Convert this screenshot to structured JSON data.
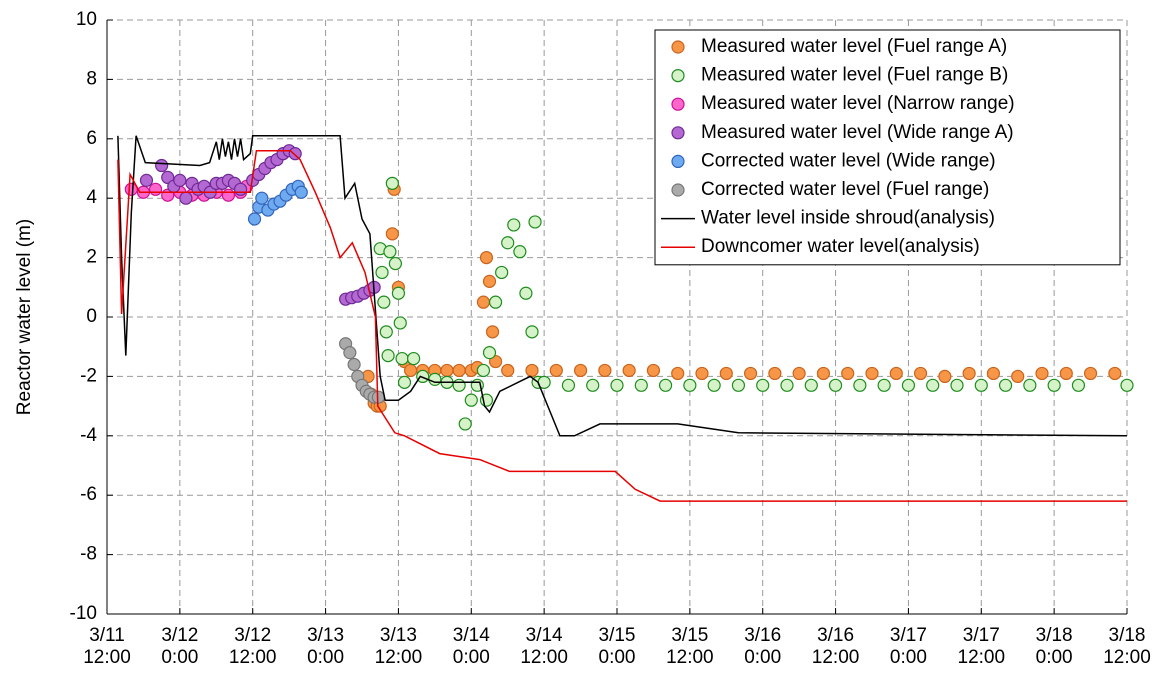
{
  "chart_data": {
    "type": "scatter",
    "ylabel": "Reactor water level (m)",
    "xlim": [
      12,
      180
    ],
    "ylim": [
      -10,
      10
    ],
    "yticks": [
      -10,
      -8,
      -6,
      -4,
      -2,
      0,
      2,
      4,
      6,
      8,
      10
    ],
    "xticks": [
      {
        "value": 12,
        "label": "3/11\n12:00"
      },
      {
        "value": 24,
        "label": "3/12\n0:00"
      },
      {
        "value": 36,
        "label": "3/12\n12:00"
      },
      {
        "value": 48,
        "label": "3/13\n0:00"
      },
      {
        "value": 60,
        "label": "3/13\n12:00"
      },
      {
        "value": 72,
        "label": "3/14\n0:00"
      },
      {
        "value": 84,
        "label": "3/14\n12:00"
      },
      {
        "value": 96,
        "label": "3/15\n0:00"
      },
      {
        "value": 108,
        "label": "3/15\n12:00"
      },
      {
        "value": 120,
        "label": "3/16\n0:00"
      },
      {
        "value": 132,
        "label": "3/16\n12:00"
      },
      {
        "value": 144,
        "label": "3/17\n0:00"
      },
      {
        "value": 156,
        "label": "3/17\n12:00"
      },
      {
        "value": 168,
        "label": "3/18\n0:00"
      },
      {
        "value": 180,
        "label": "3/18\n12:00"
      }
    ],
    "grid": true,
    "legend": "upper right",
    "series": [
      {
        "name": "Measured water level (Fuel range A)",
        "mode": "marker",
        "color": "#f79646",
        "edgecolor": "#c8641e",
        "x": [
          55,
          55.5,
          56,
          56.5,
          57,
          59,
          59.3,
          60,
          61,
          62,
          64,
          66,
          68,
          70,
          72,
          73,
          74,
          74.5,
          75,
          75.5,
          76,
          78,
          82,
          86,
          90,
          94,
          98,
          102,
          106,
          110,
          114,
          118,
          122,
          126,
          130,
          134,
          138,
          142,
          146,
          150,
          154,
          158,
          162,
          166,
          170,
          174,
          178
        ],
        "values": [
          -2.0,
          -2.6,
          -2.9,
          -3.0,
          -3.0,
          2.8,
          4.3,
          1.0,
          -1.5,
          -1.8,
          -1.8,
          -1.8,
          -1.8,
          -1.8,
          -1.8,
          -1.7,
          0.5,
          2.0,
          1.2,
          -0.5,
          -1.5,
          -1.8,
          -1.8,
          -1.8,
          -1.8,
          -1.8,
          -1.8,
          -1.8,
          -1.9,
          -1.9,
          -1.9,
          -1.9,
          -1.9,
          -1.9,
          -1.9,
          -1.9,
          -1.9,
          -1.9,
          -1.9,
          -2.0,
          -1.9,
          -1.9,
          -2.0,
          -1.9,
          -1.9,
          -1.9,
          -1.9
        ]
      },
      {
        "name": "Measured water level (Fuel range B)",
        "mode": "marker",
        "color": "#d6f2c8",
        "edgecolor": "#1e8c1e",
        "x": [
          57,
          57.3,
          57.6,
          58,
          58.3,
          58.6,
          59,
          59.5,
          60,
          60.3,
          60.6,
          61,
          62.5,
          64,
          66,
          68,
          70,
          71,
          72,
          73,
          74,
          74.5,
          75,
          76,
          77,
          78,
          79,
          80,
          81,
          82,
          82.5,
          83,
          84,
          88,
          92,
          96,
          100,
          104,
          108,
          112,
          116,
          120,
          124,
          128,
          132,
          136,
          140,
          144,
          148,
          152,
          156,
          160,
          164,
          168,
          172,
          180
        ],
        "values": [
          2.3,
          1.5,
          0.5,
          -0.5,
          -1.3,
          2.2,
          4.5,
          1.8,
          0.8,
          -0.2,
          -1.4,
          -2.2,
          -1.4,
          -2.0,
          -2.1,
          -2.2,
          -2.3,
          -3.6,
          -2.8,
          -2.3,
          -1.8,
          -2.8,
          -1.2,
          0.5,
          1.5,
          2.5,
          3.1,
          2.2,
          0.8,
          -0.5,
          3.2,
          -2.2,
          -2.2,
          -2.3,
          -2.3,
          -2.3,
          -2.3,
          -2.3,
          -2.3,
          -2.3,
          -2.3,
          -2.3,
          -2.3,
          -2.3,
          -2.3,
          -2.3,
          -2.3,
          -2.3,
          -2.3,
          -2.3,
          -2.3,
          -2.3,
          -2.3,
          -2.3,
          -2.3,
          -2.3
        ]
      },
      {
        "name": "Measured water level (Narrow range)",
        "mode": "marker",
        "color": "#ff66cc",
        "edgecolor": "#cc1199",
        "x": [
          16,
          18,
          20,
          22,
          24,
          26,
          28,
          30,
          32,
          34,
          35
        ],
        "values": [
          4.3,
          4.2,
          4.3,
          4.1,
          4.2,
          4.1,
          4.1,
          4.2,
          4.1,
          4.2,
          4.4
        ]
      },
      {
        "name": "Measured water level (Wide range A)",
        "mode": "marker",
        "color": "#b468d2",
        "edgecolor": "#6e2a96",
        "x": [
          18.5,
          21,
          22,
          23,
          24,
          25,
          26,
          27,
          28,
          29,
          30,
          31,
          32,
          33,
          34,
          36,
          37,
          38,
          39,
          40,
          41,
          42,
          43,
          51.3,
          52.3,
          53.3,
          54.3,
          55.3,
          56
        ],
        "values": [
          4.6,
          5.1,
          4.7,
          4.4,
          4.6,
          4.0,
          4.5,
          4.3,
          4.4,
          4.2,
          4.5,
          4.5,
          4.6,
          4.5,
          4.3,
          4.6,
          4.8,
          5.0,
          5.2,
          5.3,
          5.5,
          5.6,
          5.5,
          0.6,
          0.65,
          0.7,
          0.8,
          0.9,
          1.0
        ]
      },
      {
        "name": "Corrected water level (Wide range)",
        "mode": "marker",
        "color": "#6eaaf0",
        "edgecolor": "#3264be",
        "x": [
          36.3,
          37,
          37.5,
          38.5,
          39.5,
          40.5,
          41.5,
          42.5,
          43.5,
          44
        ],
        "values": [
          3.3,
          3.7,
          4.0,
          3.6,
          3.8,
          3.9,
          4.1,
          4.3,
          4.4,
          4.2
        ]
      },
      {
        "name": "Corrected water level (Fuel range)",
        "mode": "marker",
        "color": "#aaaaaa",
        "edgecolor": "#777777",
        "x": [
          51.3,
          52,
          52.7,
          53.3,
          54,
          54.7,
          55.3,
          56,
          56.7
        ],
        "values": [
          -0.9,
          -1.2,
          -1.6,
          -2.0,
          -2.3,
          -2.5,
          -2.6,
          -2.7,
          -2.7
        ]
      },
      {
        "name": "Water level inside shroud(analysis)",
        "mode": "line",
        "color": "#000000",
        "x": [
          13.8,
          14.4,
          15.1,
          16.0,
          16.8,
          18.3,
          27.3,
          28.9,
          30,
          30.5,
          31,
          31.5,
          32,
          32.5,
          33,
          33.5,
          34,
          34.5,
          35.6,
          36,
          50.4,
          51.2,
          52.8,
          54,
          55.3,
          57,
          57.8,
          60,
          62,
          63.6,
          66,
          73.4,
          74.2,
          75,
          76.7,
          81.7,
          83,
          84.6,
          86.6,
          89,
          93.2,
          106,
          116,
          180
        ],
        "values": [
          6.1,
          2.0,
          -1.3,
          3.5,
          6.1,
          5.2,
          5.1,
          5.2,
          5.9,
          5.3,
          6.0,
          5.4,
          5.9,
          5.3,
          6.0,
          5.4,
          6.0,
          5.3,
          5.5,
          6.1,
          6.1,
          4.0,
          4.5,
          3.3,
          2.8,
          -2.0,
          -2.8,
          -2.8,
          -2.5,
          -2.0,
          -2.2,
          -2.2,
          -3.0,
          -3.2,
          -2.5,
          -2.0,
          -2.2,
          -3.0,
          -4.0,
          -4.0,
          -3.6,
          -3.6,
          -3.9,
          -4.0
        ]
      },
      {
        "name": "Downcomer water level(analysis)",
        "mode": "line",
        "color": "#e60000",
        "x": [
          13.8,
          14.4,
          15.8,
          17.4,
          35.6,
          36.6,
          42.2,
          43.8,
          46.3,
          48.8,
          50.4,
          52.4,
          54.5,
          56.2,
          56.6,
          59.4,
          61,
          66.8,
          73.4,
          78.3,
          95.7,
          99,
          103.1,
          180
        ],
        "values": [
          5.3,
          0.1,
          4.8,
          4.2,
          4.2,
          5.6,
          5.6,
          5.3,
          4.2,
          3.0,
          2.0,
          2.5,
          1.5,
          0.0,
          -3.0,
          -3.9,
          -4.0,
          -4.6,
          -4.8,
          -5.2,
          -5.2,
          -5.8,
          -6.2,
          -6.2
        ]
      }
    ]
  }
}
